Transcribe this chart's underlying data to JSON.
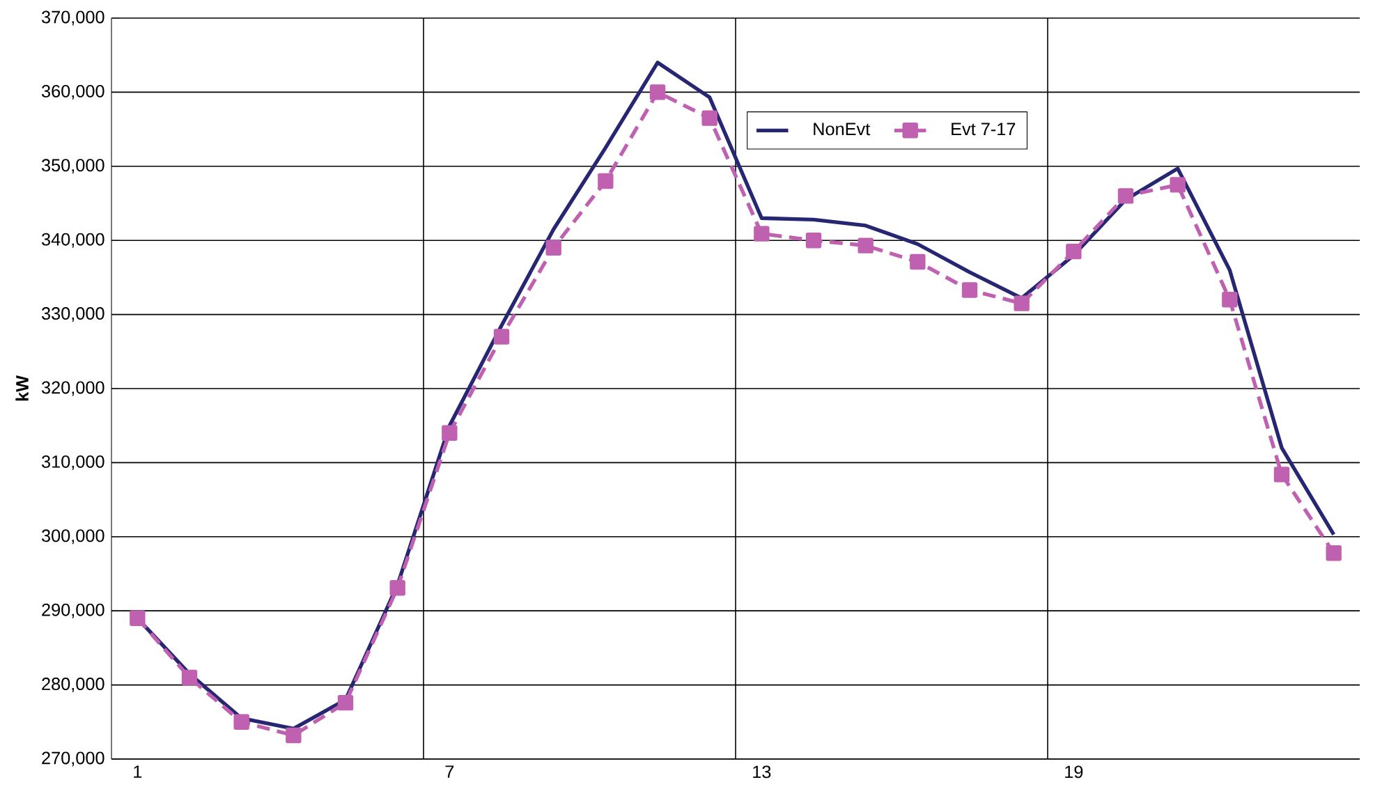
{
  "chart_data": {
    "type": "line",
    "ylabel": "kW",
    "categories": [
      "1",
      null,
      null,
      null,
      null,
      null,
      "7",
      null,
      null,
      null,
      null,
      null,
      "13",
      null,
      null,
      null,
      null,
      null,
      "19",
      null,
      null,
      null,
      null,
      null
    ],
    "series": [
      {
        "name": "NonEvt",
        "color": "#262673",
        "line_style": "solid",
        "marker": "none",
        "values": [
          289000,
          281500,
          275500,
          274100,
          278000,
          293500,
          315000,
          328500,
          341500,
          352500,
          364000,
          359300,
          343000,
          342800,
          342000,
          339500,
          335700,
          332200,
          338000,
          345500,
          349700,
          336000,
          312000,
          300300
        ]
      },
      {
        "name": "Evt 7-17",
        "color": "#c060b0",
        "line_style": "dashed",
        "marker": "square",
        "values": [
          289000,
          281000,
          275000,
          273200,
          277600,
          293100,
          314000,
          327000,
          339000,
          348000,
          360000,
          356500,
          340900,
          340000,
          339300,
          337100,
          333300,
          331500,
          338500,
          346000,
          347500,
          332000,
          308400,
          297800
        ]
      }
    ],
    "ylim": [
      270000,
      370000
    ],
    "yticks": [
      {
        "value": 270000,
        "label": "270,000"
      },
      {
        "value": 280000,
        "label": "280,000"
      },
      {
        "value": 290000,
        "label": "290,000"
      },
      {
        "value": 300000,
        "label": "300,000"
      },
      {
        "value": 310000,
        "label": "310,000"
      },
      {
        "value": 320000,
        "label": "320,000"
      },
      {
        "value": 330000,
        "label": "330,000"
      },
      {
        "value": 340000,
        "label": "340,000"
      },
      {
        "value": 350000,
        "label": "350,000"
      },
      {
        "value": 360000,
        "label": "360,000"
      },
      {
        "value": 370000,
        "label": "370,000"
      }
    ],
    "grid": true,
    "legend": "top right"
  }
}
